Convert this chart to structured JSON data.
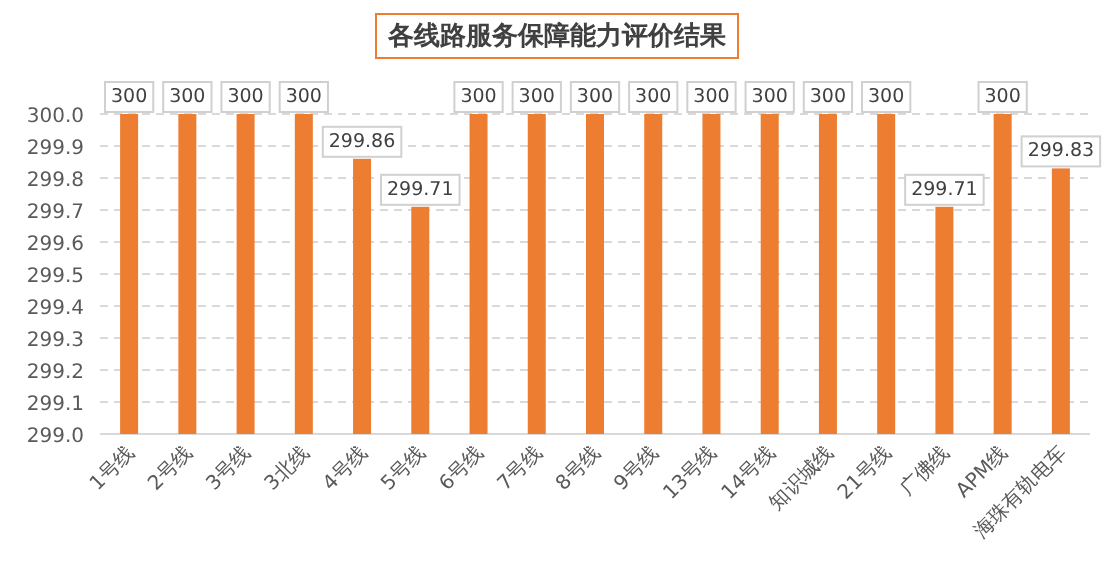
{
  "chart_data": {
    "type": "bar",
    "title": "各线路服务保障能力评价结果",
    "categories": [
      "1号线",
      "2号线",
      "3号线",
      "3北线",
      "4号线",
      "5号线",
      "6号线",
      "7号线",
      "8号线",
      "9号线",
      "13号线",
      "14号线",
      "知识城线",
      "21号线",
      "广佛线",
      "APM线",
      "海珠有轨电车"
    ],
    "values": [
      300,
      300,
      300,
      300,
      299.86,
      299.71,
      300,
      300,
      300,
      300,
      300,
      300,
      300,
      300,
      299.71,
      300,
      299.83
    ],
    "color": "#ed7d31",
    "ylim": [
      299.0,
      300.0
    ],
    "yticks": [
      {
        "value": 299.0,
        "label": "299.0"
      },
      {
        "value": 299.1,
        "label": "299.1"
      },
      {
        "value": 299.2,
        "label": "299.2"
      },
      {
        "value": 299.3,
        "label": "299.3"
      },
      {
        "value": 299.4,
        "label": "299.4"
      },
      {
        "value": 299.5,
        "label": "299.5"
      },
      {
        "value": 299.6,
        "label": "299.6"
      },
      {
        "value": 299.7,
        "label": "299.7"
      },
      {
        "value": 299.8,
        "label": "299.8"
      },
      {
        "value": 299.9,
        "label": "299.9"
      },
      {
        "value": 300.0,
        "label": "300.0"
      }
    ],
    "grid": "y",
    "data_labels": true
  }
}
